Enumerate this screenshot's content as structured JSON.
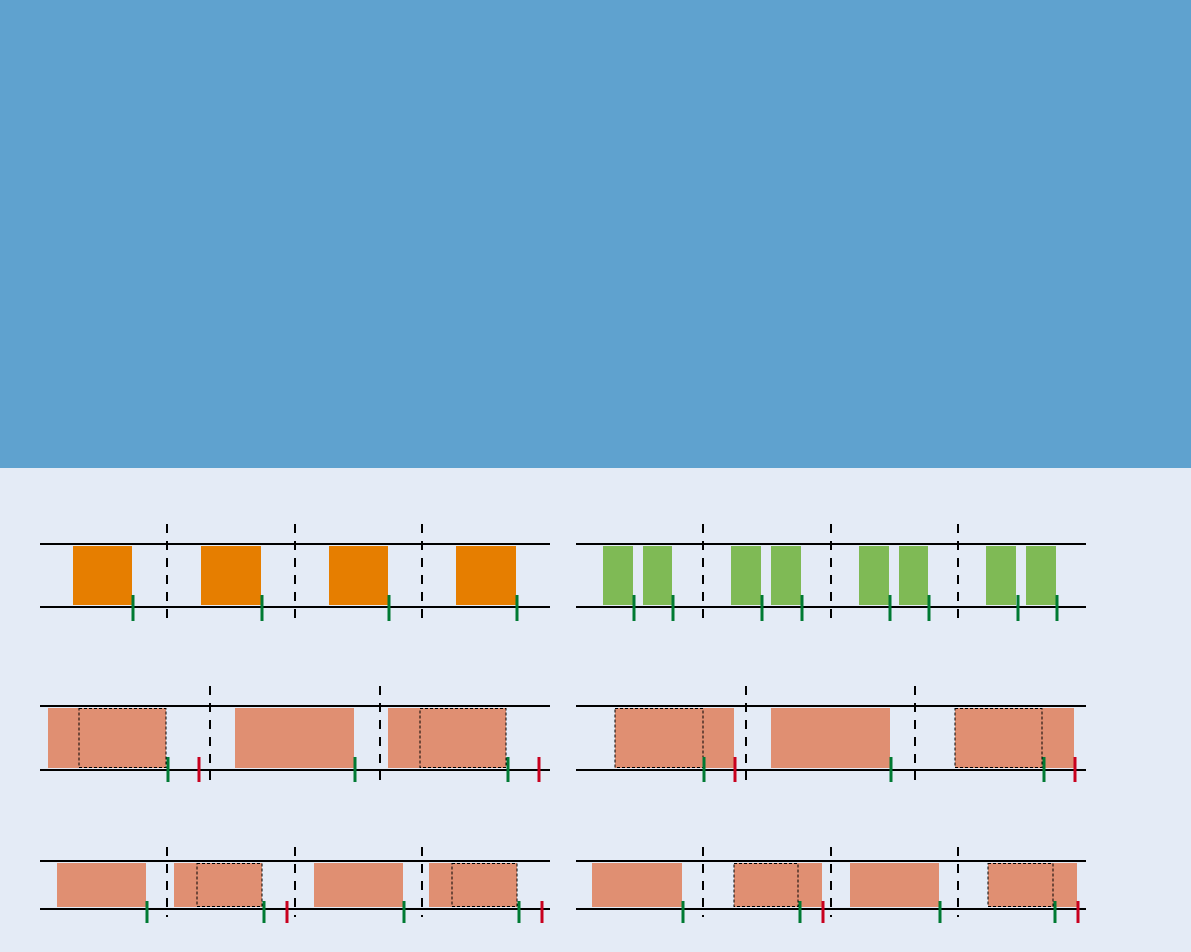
{
  "colors": {
    "banner": "#5FA2CF",
    "background": "#E4EBF6",
    "orange_block": "#E67E00",
    "green_block": "#7FBA55",
    "salmon_block": "#E08F72",
    "green_tick": "#007A33",
    "red_tick": "#C8001E",
    "line": "#000000"
  }
}
